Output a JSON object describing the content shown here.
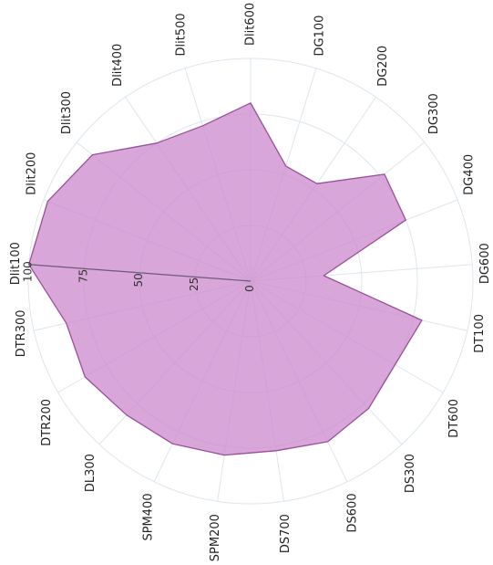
{
  "chart_data": {
    "type": "radar",
    "categories": [
      "Dlit600",
      "DG100",
      "DG200",
      "DG300",
      "DG400",
      "DG600",
      "DT100",
      "DT600",
      "DS300",
      "DS600",
      "DS700",
      "SPM200",
      "SPM400",
      "DL300",
      "DTR200",
      "DTR300",
      "Dlit100",
      "Dlit200",
      "Dlit300",
      "Dlit400",
      "Dlit500"
    ],
    "series": [
      {
        "values": [
          80,
          54,
          53,
          77,
          75,
          33,
          79,
          75,
          78,
          80,
          77,
          79,
          81,
          82,
          86,
          85,
          100,
          98,
          91,
          75,
          73
        ]
      }
    ],
    "radial_range": [
      0,
      100
    ],
    "radial_ticks": [
      "0",
      "25",
      "50",
      "75",
      "100"
    ],
    "grid": true,
    "fill_color": "#cc88cc",
    "fill_opacity": 0.75,
    "line_color": "#9a4f9a"
  }
}
